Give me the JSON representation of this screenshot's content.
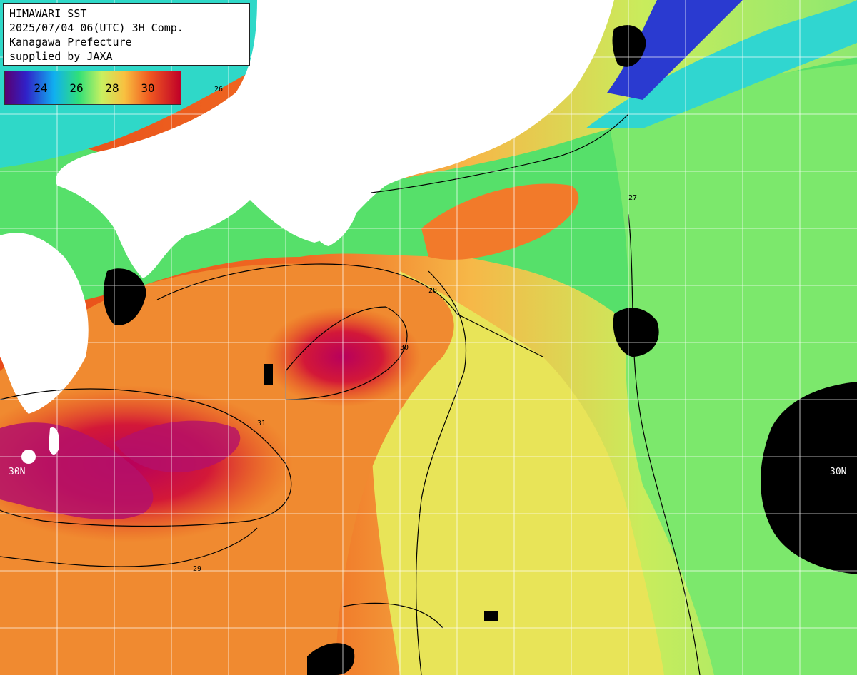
{
  "header": {
    "line1": "HIMAWARI SST",
    "line2": "2025/07/04 06(UTC) 3H Comp.",
    "line3": "Kanagawa Prefecture",
    "line4": "supplied by JAXA"
  },
  "colorbar": {
    "labels": [
      "24",
      "26",
      "28",
      "30"
    ],
    "colors": [
      "#6a0080",
      "#1f2fd0",
      "#15c8f0",
      "#3ee860",
      "#d6f060",
      "#f8b040",
      "#f05020",
      "#c00020"
    ]
  },
  "lat_labels": {
    "left": "30N",
    "right": "30N"
  },
  "contour_labels": [
    "26",
    "27",
    "28",
    "29",
    "30",
    "31"
  ],
  "colors": {
    "land": "#ffffff",
    "no_data": "#000000",
    "grid": "#ffffff",
    "contour": "#000000"
  }
}
